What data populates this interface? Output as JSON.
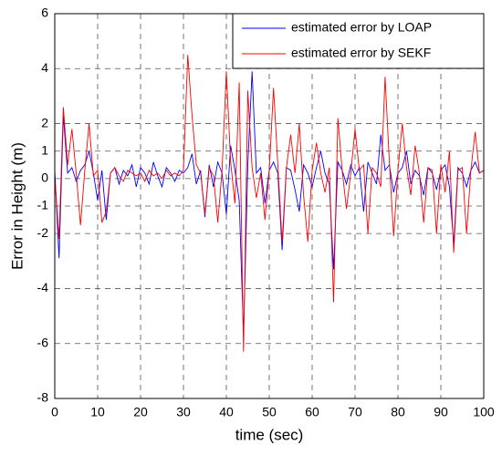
{
  "chart_data": {
    "type": "line",
    "x_label": "time (sec)",
    "y_label": "Error in Height  (m)",
    "x": [
      0,
      1,
      2,
      3,
      4,
      5,
      6,
      7,
      8,
      9,
      10,
      11,
      12,
      13,
      14,
      15,
      16,
      17,
      18,
      19,
      20,
      21,
      22,
      23,
      24,
      25,
      26,
      27,
      28,
      29,
      30,
      31,
      32,
      33,
      34,
      35,
      36,
      37,
      38,
      39,
      40,
      41,
      42,
      43,
      44,
      45,
      46,
      47,
      48,
      49,
      50,
      51,
      52,
      53,
      54,
      55,
      56,
      57,
      58,
      59,
      60,
      61,
      62,
      63,
      64,
      65,
      66,
      67,
      68,
      69,
      70,
      71,
      72,
      73,
      74,
      75,
      76,
      77,
      78,
      79,
      80,
      81,
      82,
      83,
      84,
      85,
      86,
      87,
      88,
      89,
      90,
      91,
      92,
      93,
      94,
      95,
      96,
      97,
      98,
      99,
      100
    ],
    "series": [
      {
        "name": "estimated error by  LOAP",
        "color": "#0000ff",
        "values": [
          0.3,
          -2.9,
          2.3,
          0.2,
          0.4,
          -0.1,
          0.3,
          0.5,
          1.0,
          0.2,
          -0.8,
          0.3,
          -1.5,
          0.2,
          0.4,
          -0.2,
          0.3,
          0.1,
          0.5,
          -0.3,
          0.4,
          0.2,
          -0.2,
          0.6,
          0.1,
          -0.3,
          0.4,
          0.2,
          -0.1,
          0.3,
          0.2,
          0.4,
          0.9,
          -0.2,
          0.3,
          -1.4,
          0.5,
          -0.3,
          0.6,
          0.2,
          -1.3,
          1.2,
          0.3,
          -0.8,
          -5.7,
          0.5,
          3.9,
          0.2,
          0.4,
          -0.9,
          0.3,
          0.6,
          0.2,
          -2.6,
          0.4,
          0.3,
          -0.4,
          -1.2,
          0.5,
          0.2,
          -0.3,
          0.4,
          1.0,
          0.2,
          -0.2,
          -3.3,
          0.6,
          0.3,
          -0.2,
          0.5,
          0.1,
          0.4,
          -1.2,
          0.6,
          0.2,
          -0.2,
          1.6,
          0.3,
          0.5,
          -0.5,
          0.2,
          0.4,
          1.0,
          -0.2,
          0.3,
          0.1,
          -0.6,
          0.4,
          0.2,
          -0.4,
          0.3,
          0.5,
          -0.3,
          -2.4,
          0.4,
          0.2,
          -0.3,
          0.3,
          0.6,
          0.2,
          0.3
        ]
      },
      {
        "name": "estimated error by   SEKF",
        "color": "#ff0000",
        "values": [
          0.1,
          -2.2,
          2.6,
          0.5,
          1.8,
          0.2,
          -1.7,
          0.3,
          2.0,
          0.1,
          0.3,
          -1.6,
          -1.2,
          0.2,
          0.4,
          0.1,
          -0.1,
          0.3,
          0.2,
          0.1,
          0.2,
          -0.1,
          0.3,
          0.1,
          0.2,
          0.0,
          0.3,
          0.1,
          0.2,
          0.1,
          0.3,
          4.5,
          2.3,
          0.5,
          0.2,
          -1.3,
          0.4,
          0.1,
          -1.6,
          0.3,
          3.9,
          0.6,
          -0.9,
          3.5,
          -6.3,
          3.2,
          0.4,
          -0.7,
          0.2,
          -1.5,
          0.3,
          3.3,
          0.5,
          -2.3,
          0.4,
          1.6,
          0.2,
          2.0,
          -0.6,
          -2.3,
          0.3,
          1.3,
          0.2,
          -0.5,
          0.4,
          -4.5,
          2.2,
          0.3,
          -1.1,
          0.2,
          1.8,
          0.3,
          0.5,
          -2.0,
          0.4,
          0.2,
          -0.3,
          3.7,
          0.6,
          -2.1,
          0.3,
          2.0,
          0.4,
          -0.6,
          1.2,
          0.2,
          -1.6,
          0.4,
          0.3,
          -2.0,
          0.5,
          -0.5,
          1.0,
          -2.7,
          0.3,
          0.4,
          -2.0,
          0.3,
          1.7,
          0.2,
          0.3
        ]
      }
    ],
    "xlim": [
      0,
      100
    ],
    "xticks": [
      0,
      10,
      20,
      30,
      40,
      50,
      60,
      70,
      80,
      90,
      100
    ],
    "ylim": [
      -8,
      6
    ],
    "yticks": [
      -8,
      -6,
      -4,
      -2,
      -1,
      0,
      1,
      2,
      4,
      6
    ],
    "grid": true,
    "legend": "upper right"
  }
}
